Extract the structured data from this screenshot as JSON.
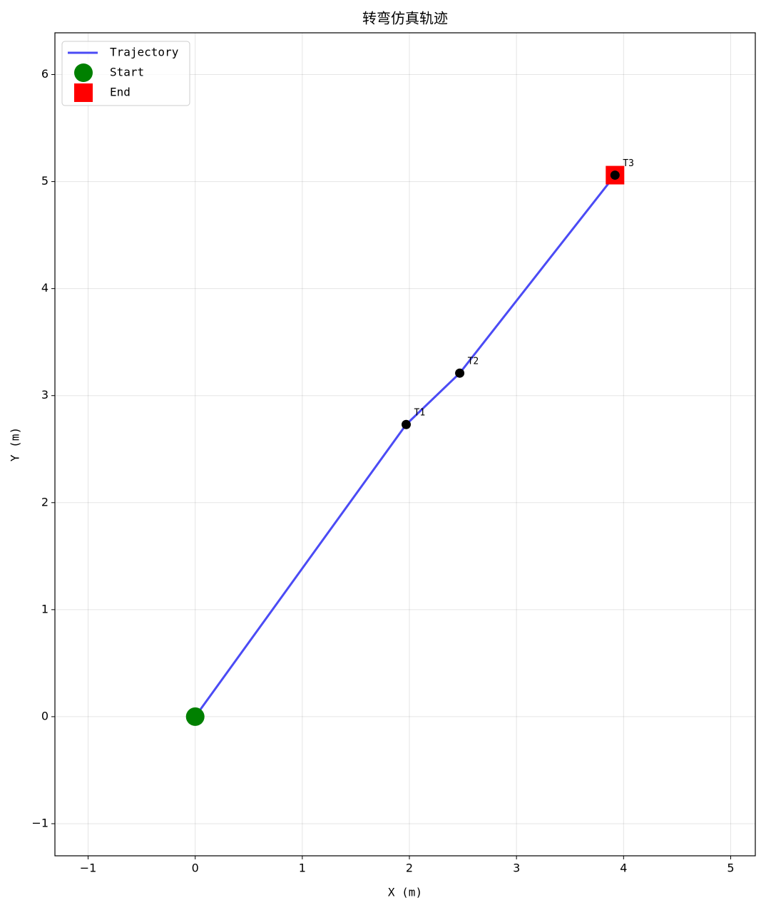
{
  "chart_data": {
    "type": "line",
    "title": "转弯仿真轨迹",
    "x_label": "X (m)",
    "y_label": "Y (m)",
    "xlim": [
      -1.31,
      5.23
    ],
    "ylim": [
      -1.3,
      6.39
    ],
    "xticks": [
      {
        "value": -1,
        "label": "−1"
      },
      0,
      1,
      2,
      3,
      4,
      5
    ],
    "yticks": [
      {
        "value": -1,
        "label": "−1"
      },
      0,
      1,
      2,
      3,
      4,
      5,
      6
    ],
    "grid": true,
    "legend": "upper left",
    "series": [
      {
        "name": "Trajectory",
        "color": "#4b4bf5",
        "x": [
          0,
          1.97,
          2.47,
          3.92
        ],
        "values": [
          0,
          2.73,
          3.21,
          5.06
        ]
      }
    ],
    "markers": [
      {
        "name": "Start",
        "color": "#008000",
        "shape": "circle",
        "x": 0,
        "y": 0
      },
      {
        "name": "End",
        "color": "#ff0000",
        "shape": "square",
        "x": 3.92,
        "y": 5.06
      }
    ],
    "points": {
      "color": "#000000",
      "labels": [
        "T1",
        "T2",
        "T3"
      ],
      "x": [
        1.97,
        2.47,
        3.92
      ],
      "y": [
        2.73,
        3.21,
        5.06
      ]
    }
  }
}
